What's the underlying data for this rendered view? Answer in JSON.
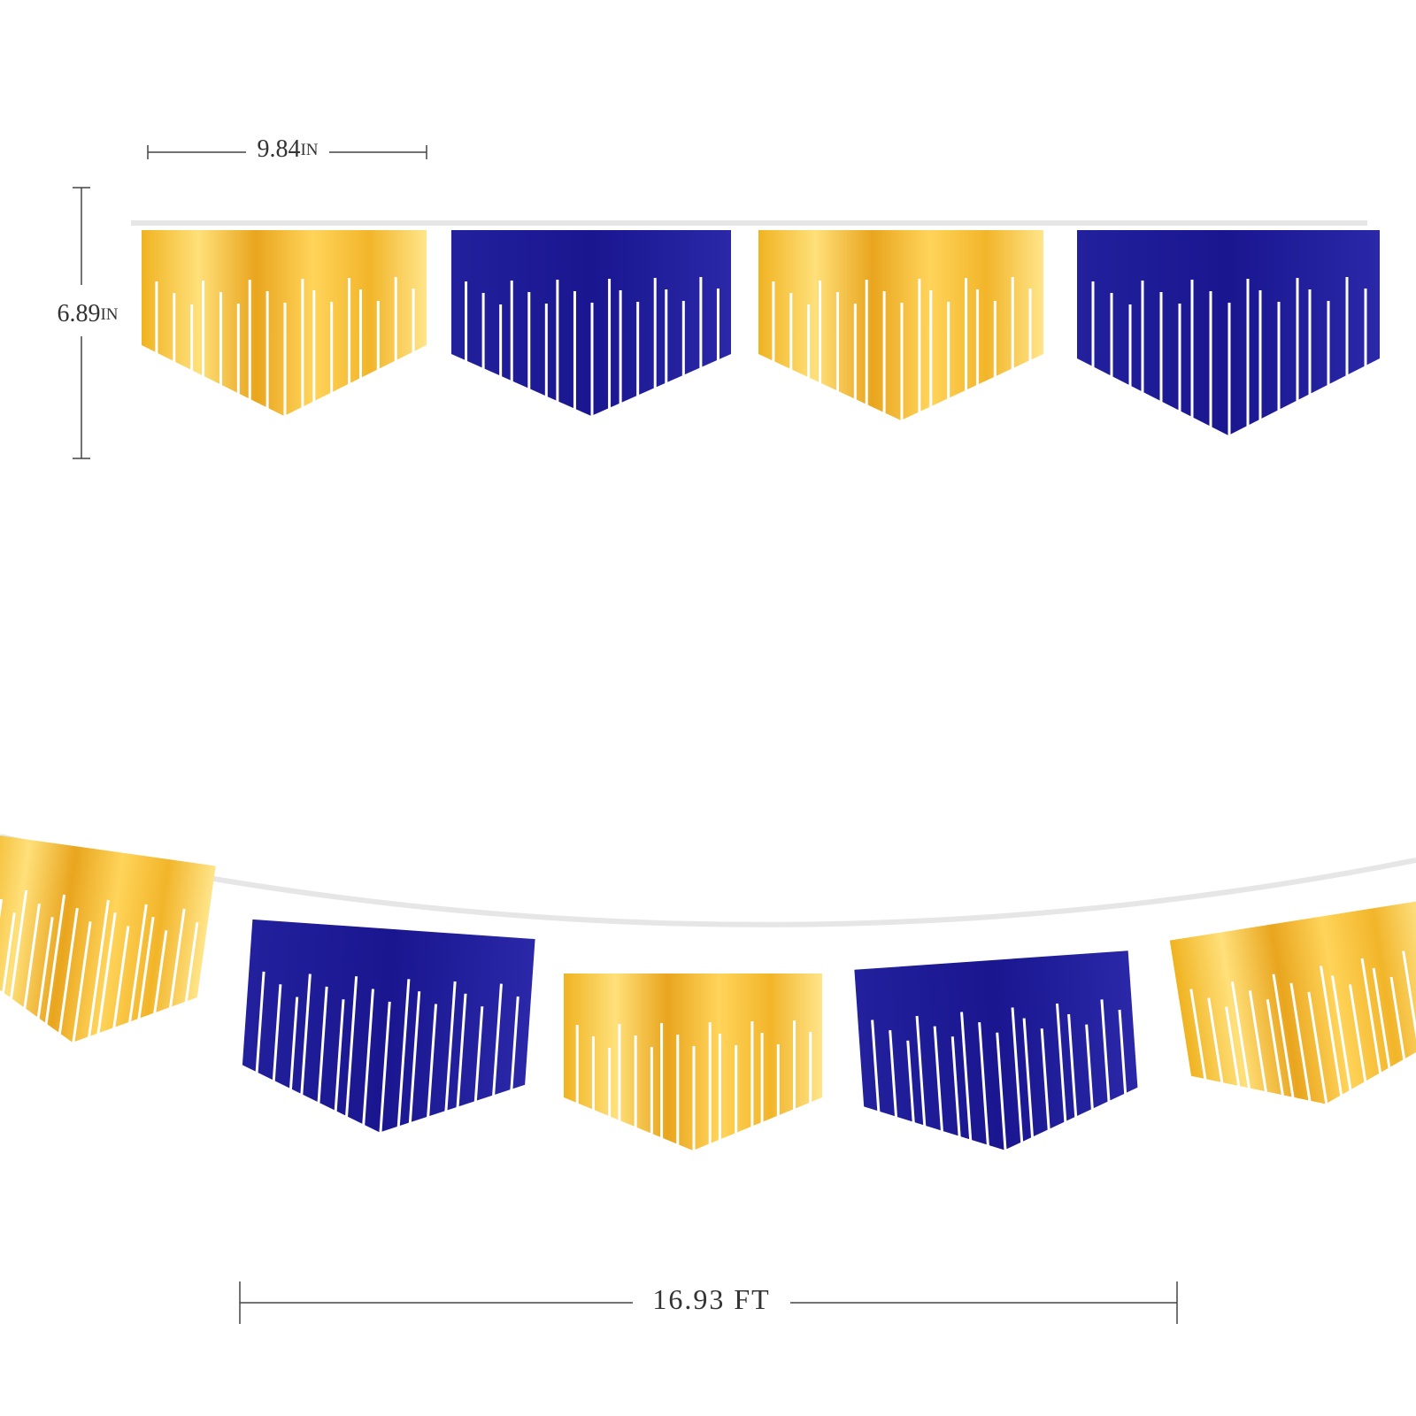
{
  "dimensions": {
    "width": {
      "value": "9.84",
      "unit": "IN"
    },
    "height": {
      "value": "6.89",
      "unit": "IN"
    },
    "length": {
      "value": "16.93",
      "unit": "FT"
    }
  }
}
